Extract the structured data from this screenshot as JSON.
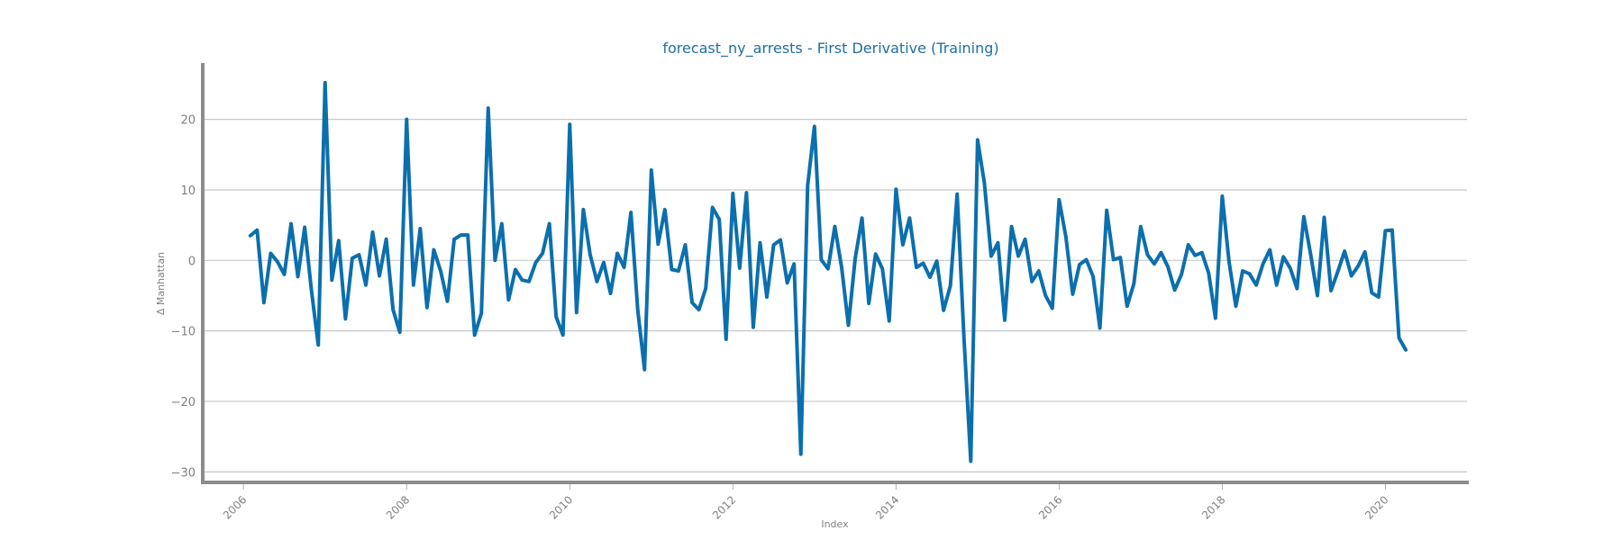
{
  "chart_data": {
    "type": "line",
    "title": "forecast_ny_arrests - First Derivative (Training)",
    "xlabel": "Index",
    "ylabel": "Δ Manhattan",
    "xlim": [
      2005.5,
      2021.0
    ],
    "ylim": [
      -31.5,
      28.0
    ],
    "y_ticks": [
      20,
      10,
      0,
      -10,
      -20,
      -30
    ],
    "y_tick_labels": [
      "20",
      "10",
      "0",
      "−10",
      "−20",
      "−30"
    ],
    "x_ticks": [
      2006,
      2008,
      2010,
      2012,
      2014,
      2016,
      2018,
      2020
    ],
    "x_tick_labels": [
      "2006",
      "2008",
      "2010",
      "2012",
      "2014",
      "2016",
      "2018",
      "2020"
    ],
    "grid": "horizontal",
    "colors": {
      "line": "#0b6fae",
      "title": "#1f6fa5",
      "grid": "#c8c8c8",
      "spine": "#8c8c8c",
      "text": "#808080"
    },
    "series": [
      {
        "start_year": 2006.083,
        "step_years": 0.08333,
        "values": [
          3.5,
          4.3,
          -6.0,
          1.0,
          -0.2,
          -2.0,
          5.2,
          -2.3,
          4.7,
          -4.3,
          -12.0,
          25.2,
          -2.8,
          2.8,
          -8.3,
          0.3,
          0.8,
          -3.5,
          4.0,
          -2.2,
          3.0,
          -7.0,
          -10.2,
          20.0,
          -3.5,
          4.5,
          -6.7,
          1.5,
          -1.5,
          -5.8,
          3.0,
          3.6,
          3.6,
          -10.6,
          -7.5,
          21.6,
          0.0,
          5.2,
          -5.6,
          -1.3,
          -2.8,
          -3.0,
          -0.3,
          1.0,
          5.2,
          -8.0,
          -10.6,
          19.3,
          -7.4,
          7.2,
          0.8,
          -3.0,
          -0.3,
          -4.7,
          1.0,
          -1.0,
          6.8,
          -7.0,
          -15.5,
          12.8,
          2.3,
          7.2,
          -1.3,
          -1.5,
          2.2,
          -6.0,
          -7.0,
          -4.0,
          7.5,
          5.8,
          -11.2,
          9.5,
          -1.1,
          9.6,
          -9.5,
          2.5,
          -5.2,
          2.2,
          2.9,
          -3.2,
          -0.5,
          -27.5,
          10.6,
          19.0,
          0.1,
          -1.2,
          4.8,
          -1.0,
          -9.2,
          0.3,
          6.0,
          -6.1,
          0.9,
          -1.2,
          -8.6,
          10.1,
          2.2,
          6.0,
          -1.0,
          -0.4,
          -2.4,
          -0.1,
          -7.1,
          -3.6,
          9.4,
          -11.0,
          -28.5,
          17.1,
          11.0,
          0.6,
          2.5,
          -8.5,
          4.8,
          0.6,
          3.0,
          -3.0,
          -1.5,
          -5.0,
          -6.8,
          8.6,
          3.3,
          -4.8,
          -0.6,
          0.1,
          -2.3,
          -9.6,
          7.1,
          0.1,
          0.4,
          -6.5,
          -3.3,
          4.8,
          0.8,
          -0.5,
          1.1,
          -0.9,
          -4.2,
          -2.0,
          2.2,
          0.7,
          1.1,
          -1.8,
          -8.2,
          9.1,
          -0.2,
          -6.5,
          -1.5,
          -1.9,
          -3.5,
          -0.5,
          1.5,
          -3.5,
          0.5,
          -1.1,
          -4.0,
          6.2,
          0.9,
          -5.0,
          6.1,
          -4.3,
          -1.6,
          1.3,
          -2.2,
          -0.8,
          1.2,
          -4.6,
          -5.2,
          4.2,
          4.3,
          -11.0,
          -12.7
        ]
      }
    ]
  }
}
